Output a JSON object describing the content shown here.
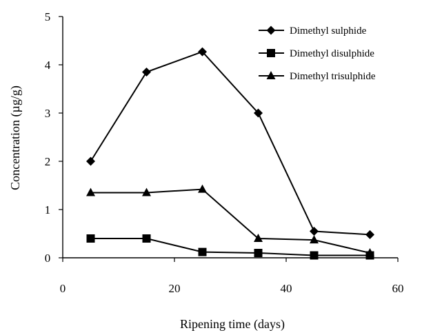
{
  "chart_data": {
    "type": "line",
    "title": "",
    "xlabel": "Ripening time (days)",
    "ylabel": "Concentration (µg/g)",
    "xlim": [
      0,
      60
    ],
    "ylim": [
      0,
      5
    ],
    "xticks": [
      "0",
      "20",
      "40",
      "60"
    ],
    "yticks": [
      "0",
      "1",
      "2",
      "3",
      "4",
      "5"
    ],
    "grid": false,
    "legend_position": "top-right",
    "x": [
      5,
      15,
      25,
      35,
      45,
      55
    ],
    "series": [
      {
        "name": "Dimethyl sulphide",
        "marker": "diamond",
        "values": [
          2.0,
          3.85,
          4.27,
          3.0,
          0.55,
          0.48
        ]
      },
      {
        "name": "Dimethyl disulphide",
        "marker": "square",
        "values": [
          0.4,
          0.4,
          0.12,
          0.1,
          0.05,
          0.05
        ]
      },
      {
        "name": "Dimethyl trisulphide",
        "marker": "triangle",
        "values": [
          1.35,
          1.35,
          1.42,
          0.4,
          0.37,
          0.1
        ]
      }
    ],
    "color": "#000000"
  }
}
